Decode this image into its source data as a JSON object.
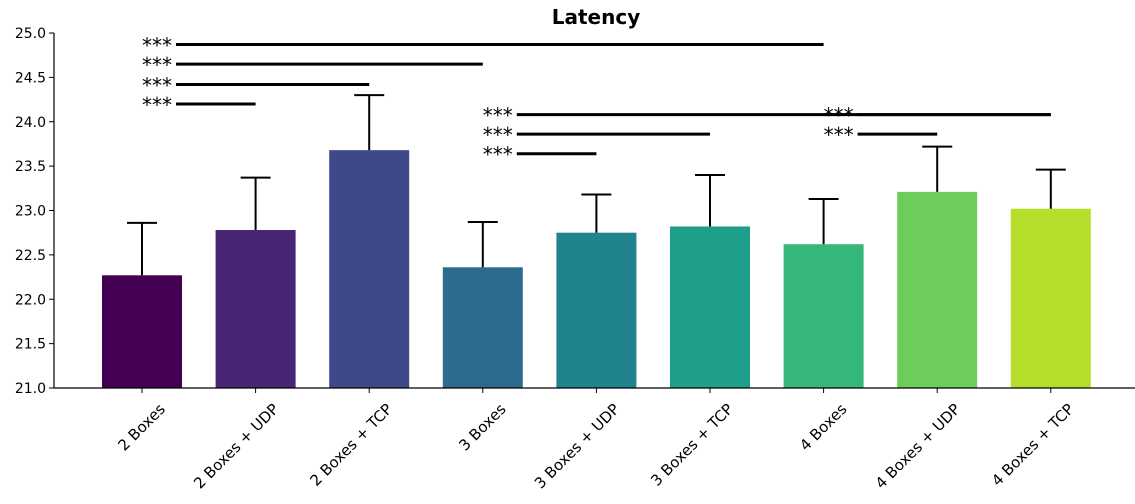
{
  "chart_data": {
    "type": "bar",
    "title": "Latency",
    "xlabel": "",
    "ylabel": "",
    "ylim": [
      21.0,
      25.0
    ],
    "yticks": [
      "21.0",
      "21.5",
      "22.0",
      "22.5",
      "23.0",
      "23.5",
      "24.0",
      "24.5",
      "25.0"
    ],
    "categories": [
      "2 Boxes",
      "2 Boxes + UDP",
      "2 Boxes + TCP",
      "3 Boxes",
      "3 Boxes + UDP",
      "3 Boxes + TCP",
      "4 Boxes",
      "4 Boxes + UDP",
      "4 Boxes + TCP"
    ],
    "values": [
      22.27,
      22.78,
      23.68,
      22.36,
      22.75,
      22.82,
      22.62,
      23.21,
      23.02
    ],
    "error_upper": [
      0.59,
      0.59,
      0.62,
      0.51,
      0.43,
      0.58,
      0.51,
      0.51,
      0.44
    ],
    "colors": [
      "#440154",
      "#482475",
      "#3e4989",
      "#2c6b8e",
      "#21838c",
      "#1f9e89",
      "#35b779",
      "#6ccd5a",
      "#b5de2b"
    ],
    "grid": false,
    "legend": "none",
    "significance": [
      {
        "label": "***",
        "from": "2 Boxes",
        "to": "4 Boxes",
        "y": 24.87
      },
      {
        "label": "***",
        "from": "2 Boxes",
        "to": "3 Boxes",
        "y": 24.65
      },
      {
        "label": "***",
        "from": "2 Boxes",
        "to": "2 Boxes + TCP",
        "y": 24.42
      },
      {
        "label": "***",
        "from": "2 Boxes",
        "to": "2 Boxes + UDP",
        "y": 24.2
      },
      {
        "label": "***",
        "from": "3 Boxes",
        "to": "4 Boxes + TCP",
        "y": 24.08
      },
      {
        "label": "***",
        "from": "3 Boxes",
        "to": "3 Boxes + TCP",
        "y": 23.86
      },
      {
        "label": "***",
        "from": "3 Boxes",
        "to": "3 Boxes + UDP",
        "y": 23.64
      },
      {
        "label": "***",
        "from": "4 Boxes",
        "to": "4 Boxes + TCP",
        "y": 24.08
      },
      {
        "label": "***",
        "from": "4 Boxes",
        "to": "4 Boxes + UDP",
        "y": 23.86
      }
    ]
  }
}
